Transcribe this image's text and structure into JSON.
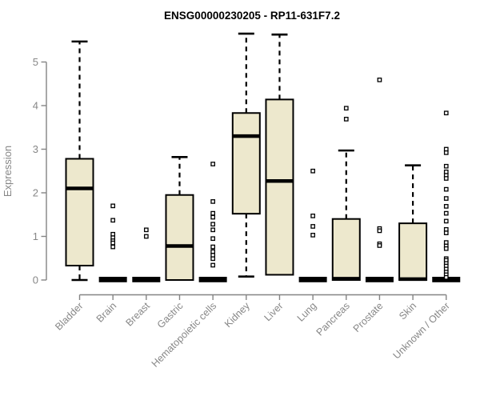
{
  "title": "ENSG00000230205 - RP11-631F7.2",
  "colors": {
    "box_fill": "#EDE8CD",
    "box_stroke": "#000000",
    "median": "#000000",
    "whisker": "#000000",
    "outlier_fill": "#FFFFFF",
    "outlier_stroke": "#000000",
    "axis_line": "#848484",
    "tick_label": "#878787",
    "title_color": "#000000"
  },
  "chart_data": {
    "type": "boxplot",
    "title": "ENSG00000230205 - RP11-631F7.2",
    "xlabel": "",
    "ylabel": "Expression",
    "ylim": [
      0,
      5.7
    ],
    "yticks": [
      0,
      1,
      2,
      3,
      4,
      5
    ],
    "grid": false,
    "legend": "none",
    "categories": [
      "Bladder",
      "Brain",
      "Breast",
      "Gastric",
      "Hematopoietic cells",
      "Kidney",
      "Liver",
      "Lung",
      "Pancreas",
      "Prostate",
      "Skin",
      "Unknown / Other"
    ],
    "series": [
      {
        "name": "Bladder",
        "low": 0,
        "q1": 0.33,
        "median": 2.1,
        "q3": 2.78,
        "high": 5.47,
        "outliers": []
      },
      {
        "name": "Brain",
        "low": 0,
        "q1": 0,
        "median": 0,
        "q3": 0,
        "high": 0,
        "outliers": [
          1.7,
          1.37,
          1.05,
          0.97,
          0.9,
          0.85,
          0.76
        ]
      },
      {
        "name": "Breast",
        "low": 0,
        "q1": 0,
        "median": 0,
        "q3": 0,
        "high": 0,
        "outliers": [
          1.15,
          1.0
        ]
      },
      {
        "name": "Gastric",
        "low": 0,
        "q1": 0,
        "median": 0.78,
        "q3": 1.95,
        "high": 2.82,
        "outliers": []
      },
      {
        "name": "Hematopoietic cells",
        "low": 0,
        "q1": 0,
        "median": 0,
        "q3": 0,
        "high": 0,
        "outliers": [
          2.66,
          1.8,
          1.53,
          1.44,
          1.28,
          1.15,
          0.95,
          0.76,
          0.65,
          0.57,
          0.49,
          0.34
        ]
      },
      {
        "name": "Kidney",
        "low": 0.08,
        "q1": 1.52,
        "median": 3.3,
        "q3": 3.83,
        "high": 5.65,
        "outliers": []
      },
      {
        "name": "Liver",
        "low": 0.12,
        "q1": 0.12,
        "median": 2.27,
        "q3": 4.14,
        "high": 5.63,
        "outliers": []
      },
      {
        "name": "Lung",
        "low": 0,
        "q1": 0,
        "median": 0,
        "q3": 0,
        "high": 0,
        "outliers": [
          2.5,
          1.47,
          1.23,
          1.03
        ]
      },
      {
        "name": "Pancreas",
        "low": 0,
        "q1": 0,
        "median": 0.03,
        "q3": 1.4,
        "high": 2.97,
        "outliers": [
          3.94,
          3.69
        ]
      },
      {
        "name": "Prostate",
        "low": 0,
        "q1": 0,
        "median": 0,
        "q3": 0,
        "high": 0,
        "outliers": [
          4.59,
          1.18,
          1.13,
          0.83,
          0.79
        ]
      },
      {
        "name": "Skin",
        "low": 0,
        "q1": 0,
        "median": 0.02,
        "q3": 1.3,
        "high": 2.63,
        "outliers": []
      },
      {
        "name": "Unknown / Other",
        "low": 0,
        "q1": 0,
        "median": 0,
        "q3": 0,
        "high": 0,
        "outliers": [
          3.83,
          3.0,
          2.92,
          2.61,
          2.48,
          2.4,
          2.33,
          2.08,
          1.87,
          1.69,
          1.53,
          1.35,
          1.16,
          1.08,
          0.86,
          0.78,
          0.72,
          0.49,
          0.45,
          0.38,
          0.32,
          0.25,
          0.18,
          0.12,
          0.06
        ]
      }
    ]
  }
}
